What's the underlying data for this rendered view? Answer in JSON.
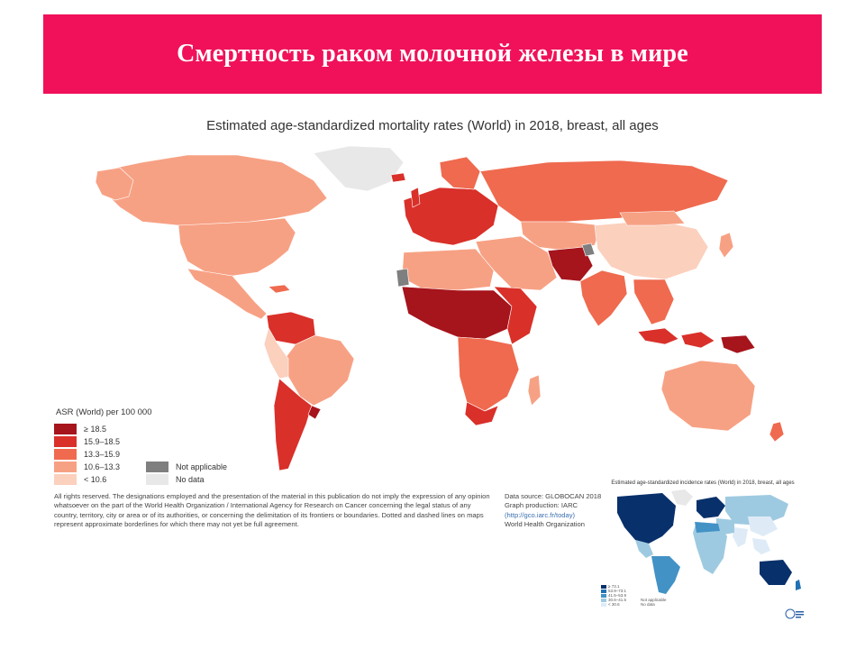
{
  "slide": {
    "title": "Смертность раком молочной железы в мире"
  },
  "map": {
    "title": "Estimated age-standardized mortality rates (World) in 2018, breast, all ages",
    "legend": {
      "title": "ASR (World) per 100 000",
      "classes": [
        {
          "label": "≥ 18.5",
          "color": "#a6141c"
        },
        {
          "label": "15.9–18.5",
          "color": "#d9302a"
        },
        {
          "label": "13.3–15.9",
          "color": "#ef6a4f"
        },
        {
          "label": "10.6–13.3",
          "color": "#f7a184"
        },
        {
          "label": "< 10.6",
          "color": "#fbd0bd"
        }
      ],
      "special": [
        {
          "label": "Not applicable",
          "color": "#7f7f7f"
        },
        {
          "label": "No data",
          "color": "#e8e8e8"
        }
      ]
    },
    "notes": "All rights reserved. The designations employed and the presentation of the material in this publication do not imply the expression of any opinion whatsoever on the part of the World Health Organization / International Agency for Research on Cancer concerning the legal status of any country, territory, city or area or of its authorities, or concerning the delimitation of its frontiers or boundaries. Dotted and dashed lines on maps represent approximate borderlines for which there may not yet be full agreement.",
    "source": {
      "data_source": "Data source: GLOBOCAN 2018",
      "graph_production": "Graph production: IARC",
      "link": "(http://gco.iarc.fr/today)",
      "org": "World Health Organization"
    }
  },
  "inset_map": {
    "title": "Estimated age-standardized incidence rates (World) in 2018, breast, all ages",
    "legend_labels": [
      "≥ 73.1",
      "53.9–73.1",
      "41.5–53.9",
      "30.6–41.5",
      "< 30.6"
    ],
    "legend_colors": [
      "#08306b",
      "#2171b5",
      "#4292c6",
      "#9ecae1",
      "#deebf7"
    ],
    "special_labels": [
      "Not applicable",
      "No data"
    ]
  }
}
